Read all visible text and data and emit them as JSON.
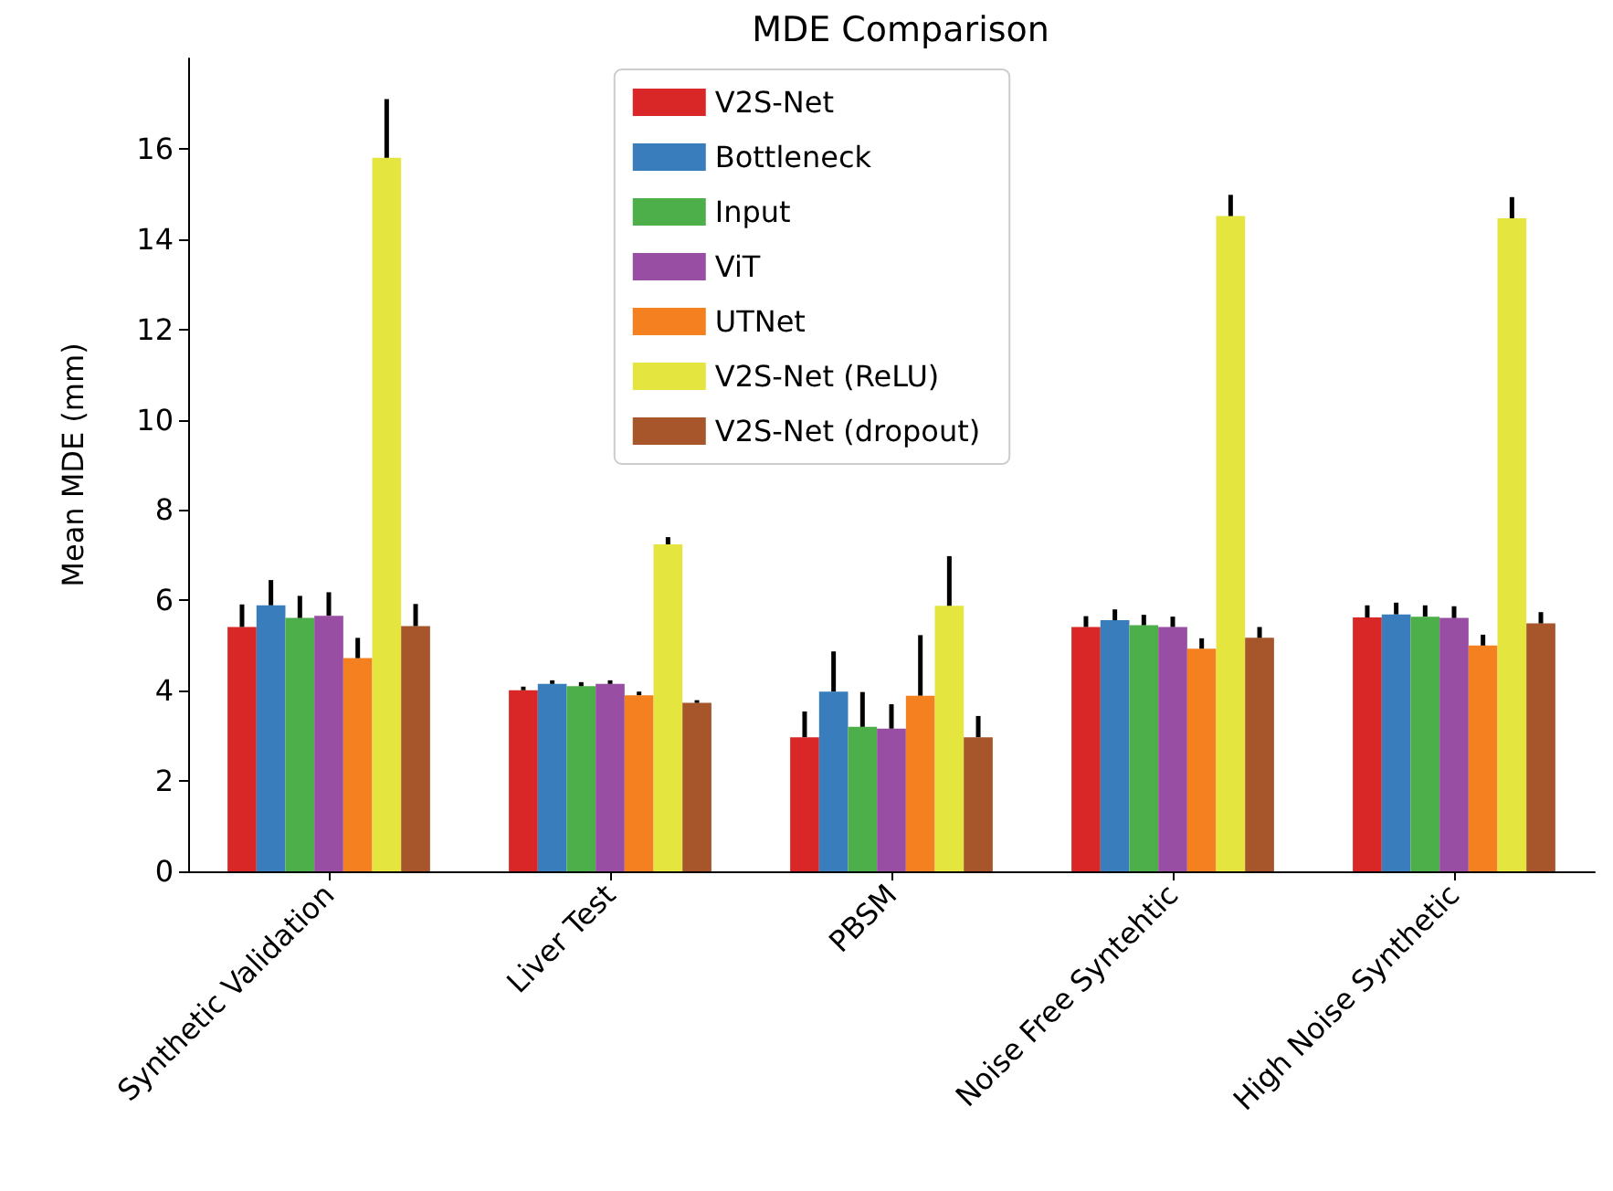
{
  "chart_data": {
    "type": "bar",
    "title": "MDE Comparison",
    "ylabel": "Mean MDE (mm)",
    "categories": [
      "Synthetic Validation",
      "Liver Test",
      "PBSM",
      "Noise Free Syntehtic",
      "High Noise Synthetic"
    ],
    "series": [
      {
        "name": "V2S-Net",
        "color": "#d92626",
        "values": [
          5.41,
          4.01,
          2.97,
          5.41,
          5.62
        ],
        "errors": [
          [
            5.41,
            5.91
          ],
          [
            4.01,
            4.09
          ],
          [
            2.97,
            3.54
          ],
          [
            5.41,
            5.65
          ],
          [
            5.62,
            5.89
          ]
        ]
      },
      {
        "name": "Bottleneck",
        "color": "#3a7dbd",
        "values": [
          5.89,
          4.15,
          3.98,
          5.56,
          5.69
        ],
        "errors": [
          [
            5.89,
            6.45
          ],
          [
            4.15,
            4.23
          ],
          [
            3.98,
            4.87
          ],
          [
            5.56,
            5.8
          ],
          [
            5.69,
            5.95
          ]
        ]
      },
      {
        "name": "Input",
        "color": "#4daf4a",
        "values": [
          5.61,
          4.1,
          3.2,
          5.45,
          5.64
        ],
        "errors": [
          [
            5.61,
            6.1
          ],
          [
            4.1,
            4.19
          ],
          [
            3.2,
            3.97
          ],
          [
            5.45,
            5.68
          ],
          [
            5.64,
            5.89
          ]
        ]
      },
      {
        "name": "ViT",
        "color": "#984ea3",
        "values": [
          5.66,
          4.15,
          3.16,
          5.41,
          5.61
        ],
        "errors": [
          [
            5.66,
            6.18
          ],
          [
            4.15,
            4.23
          ],
          [
            3.16,
            3.7
          ],
          [
            5.41,
            5.64
          ],
          [
            5.61,
            5.87
          ]
        ]
      },
      {
        "name": "UTNet",
        "color": "#f58020",
        "values": [
          4.72,
          3.9,
          3.89,
          4.93,
          5.0
        ],
        "errors": [
          [
            4.72,
            5.17
          ],
          [
            3.9,
            3.98
          ],
          [
            3.89,
            5.23
          ],
          [
            4.93,
            5.16
          ],
          [
            5.0,
            5.24
          ]
        ]
      },
      {
        "name": "V2S-Net (ReLU)",
        "color": "#e5e540",
        "values": [
          15.8,
          7.24,
          5.88,
          14.51,
          14.46
        ],
        "errors": [
          [
            15.8,
            17.1
          ],
          [
            7.24,
            7.4
          ],
          [
            5.88,
            6.98
          ],
          [
            14.51,
            14.98
          ],
          [
            14.46,
            14.93
          ]
        ]
      },
      {
        "name": "V2S-Net (dropout)",
        "color": "#a6562a",
        "values": [
          5.43,
          3.73,
          2.97,
          5.17,
          5.49
        ],
        "errors": [
          [
            5.43,
            5.92
          ],
          [
            3.73,
            3.79
          ],
          [
            2.97,
            3.44
          ],
          [
            5.17,
            5.41
          ],
          [
            5.49,
            5.74
          ]
        ]
      }
    ],
    "ylim": [
      0,
      18
    ],
    "yticks": [
      0,
      2,
      4,
      6,
      8,
      10,
      12,
      14,
      16
    ],
    "grid": false,
    "legend": "top"
  }
}
